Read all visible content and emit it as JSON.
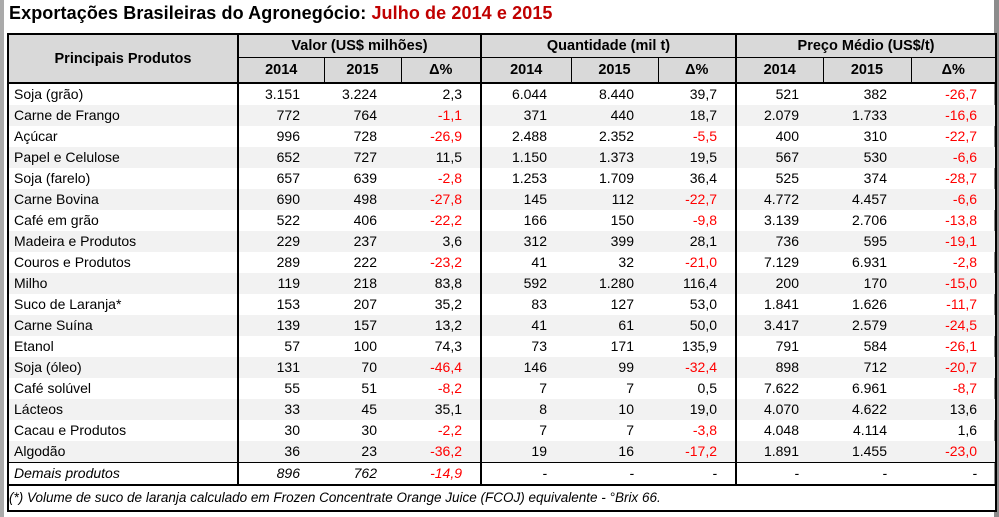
{
  "title": {
    "black": "Exportações Brasileiras do Agronegócio:",
    "red": "Julho de 2014 e 2015"
  },
  "colors": {
    "title_red": "#c00000",
    "negative_value": "#ff0000",
    "header_bg": "#d9d9d9",
    "alt_row_bg": "#f2f2f2",
    "border": "#000000"
  },
  "table": {
    "product_header": "Principais Produtos",
    "groups": [
      {
        "label": "Valor (US$ milhões)"
      },
      {
        "label": "Quantidade (mil t)"
      },
      {
        "label": "Preço Médio (US$/t)"
      }
    ],
    "sub_headers": [
      "2014",
      "2015",
      "Δ%"
    ],
    "rows": [
      {
        "product": "Soja (grão)",
        "valor": [
          "3.151",
          "3.224",
          "2,3"
        ],
        "quantidade": [
          "6.044",
          "8.440",
          "39,7"
        ],
        "preco": [
          "521",
          "382",
          "-26,7"
        ]
      },
      {
        "product": "Carne de Frango",
        "valor": [
          "772",
          "764",
          "-1,1"
        ],
        "quantidade": [
          "371",
          "440",
          "18,7"
        ],
        "preco": [
          "2.079",
          "1.733",
          "-16,6"
        ]
      },
      {
        "product": "Açúcar",
        "valor": [
          "996",
          "728",
          "-26,9"
        ],
        "quantidade": [
          "2.488",
          "2.352",
          "-5,5"
        ],
        "preco": [
          "400",
          "310",
          "-22,7"
        ]
      },
      {
        "product": "Papel e Celulose",
        "valor": [
          "652",
          "727",
          "11,5"
        ],
        "quantidade": [
          "1.150",
          "1.373",
          "19,5"
        ],
        "preco": [
          "567",
          "530",
          "-6,6"
        ]
      },
      {
        "product": "Soja (farelo)",
        "valor": [
          "657",
          "639",
          "-2,8"
        ],
        "quantidade": [
          "1.253",
          "1.709",
          "36,4"
        ],
        "preco": [
          "525",
          "374",
          "-28,7"
        ]
      },
      {
        "product": "Carne Bovina",
        "valor": [
          "690",
          "498",
          "-27,8"
        ],
        "quantidade": [
          "145",
          "112",
          "-22,7"
        ],
        "preco": [
          "4.772",
          "4.457",
          "-6,6"
        ]
      },
      {
        "product": "Café em grão",
        "valor": [
          "522",
          "406",
          "-22,2"
        ],
        "quantidade": [
          "166",
          "150",
          "-9,8"
        ],
        "preco": [
          "3.139",
          "2.706",
          "-13,8"
        ]
      },
      {
        "product": "Madeira e Produtos",
        "valor": [
          "229",
          "237",
          "3,6"
        ],
        "quantidade": [
          "312",
          "399",
          "28,1"
        ],
        "preco": [
          "736",
          "595",
          "-19,1"
        ]
      },
      {
        "product": "Couros e Produtos",
        "valor": [
          "289",
          "222",
          "-23,2"
        ],
        "quantidade": [
          "41",
          "32",
          "-21,0"
        ],
        "preco": [
          "7.129",
          "6.931",
          "-2,8"
        ]
      },
      {
        "product": "Milho",
        "valor": [
          "119",
          "218",
          "83,8"
        ],
        "quantidade": [
          "592",
          "1.280",
          "116,4"
        ],
        "preco": [
          "200",
          "170",
          "-15,0"
        ]
      },
      {
        "product": "Suco de Laranja*",
        "valor": [
          "153",
          "207",
          "35,2"
        ],
        "quantidade": [
          "83",
          "127",
          "53,0"
        ],
        "preco": [
          "1.841",
          "1.626",
          "-11,7"
        ]
      },
      {
        "product": "Carne Suína",
        "valor": [
          "139",
          "157",
          "13,2"
        ],
        "quantidade": [
          "41",
          "61",
          "50,0"
        ],
        "preco": [
          "3.417",
          "2.579",
          "-24,5"
        ]
      },
      {
        "product": "Etanol",
        "valor": [
          "57",
          "100",
          "74,3"
        ],
        "quantidade": [
          "73",
          "171",
          "135,9"
        ],
        "preco": [
          "791",
          "584",
          "-26,1"
        ]
      },
      {
        "product": "Soja (óleo)",
        "valor": [
          "131",
          "70",
          "-46,4"
        ],
        "quantidade": [
          "146",
          "99",
          "-32,4"
        ],
        "preco": [
          "898",
          "712",
          "-20,7"
        ]
      },
      {
        "product": "Café solúvel",
        "valor": [
          "55",
          "51",
          "-8,2"
        ],
        "quantidade": [
          "7",
          "7",
          "0,5"
        ],
        "preco": [
          "7.622",
          "6.961",
          "-8,7"
        ]
      },
      {
        "product": "Lácteos",
        "valor": [
          "33",
          "45",
          "35,1"
        ],
        "quantidade": [
          "8",
          "10",
          "19,0"
        ],
        "preco": [
          "4.070",
          "4.622",
          "13,6"
        ]
      },
      {
        "product": "Cacau e Produtos",
        "valor": [
          "30",
          "30",
          "-2,2"
        ],
        "quantidade": [
          "7",
          "7",
          "-3,8"
        ],
        "preco": [
          "4.048",
          "4.114",
          "1,6"
        ]
      },
      {
        "product": "Algodão",
        "valor": [
          "36",
          "23",
          "-36,2"
        ],
        "quantidade": [
          "19",
          "16",
          "-17,2"
        ],
        "preco": [
          "1.891",
          "1.455",
          "-23,0"
        ]
      },
      {
        "product": "Demais produtos",
        "italic": true,
        "valor": [
          "896",
          "762",
          "-14,9"
        ],
        "quantidade": [
          "-",
          "-",
          "-"
        ],
        "preco": [
          "-",
          "-",
          "-"
        ]
      }
    ],
    "footnote": "(*) Volume de suco de laranja calculado em Frozen Concentrate Orange Juice (FCOJ) equivalente - °Brix 66."
  }
}
